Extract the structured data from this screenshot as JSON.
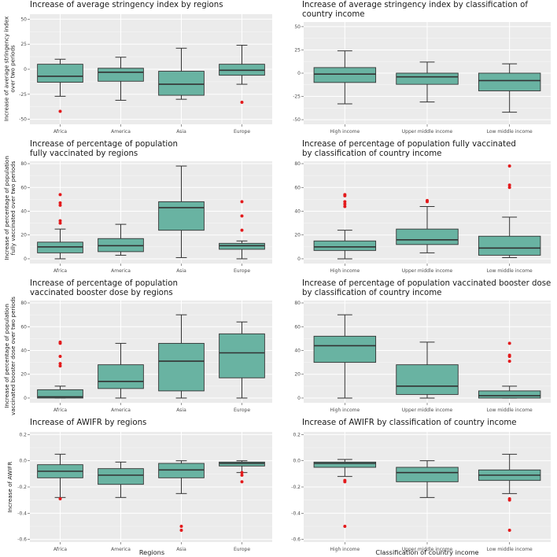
{
  "colors": {
    "panel_bg": "#ebebeb",
    "grid": "#ffffff",
    "box_fill": "#69b3a2",
    "outlier": "#e31a1c",
    "line": "#333333"
  },
  "x_labels": {
    "regions": "Regions",
    "income": "Classification of country income"
  },
  "chart_data": [
    {
      "id": "stringency-regions",
      "type": "boxplot",
      "title": "Increase of average stringency index by regions",
      "ylabel": "Increase of average stringency index\nover two periods",
      "xlabel": "",
      "ylim": [
        -55,
        55
      ],
      "yticks": [
        -50,
        -25,
        0,
        25,
        50
      ],
      "categories": [
        "Africa",
        "America",
        "Asia",
        "Europe"
      ],
      "boxes": [
        {
          "min": -27,
          "q1": -13,
          "median": -7,
          "q3": 5,
          "max": 10,
          "outliers": [
            -42
          ]
        },
        {
          "min": -31,
          "q1": -12,
          "median": -3,
          "q3": 1,
          "max": 12,
          "outliers": []
        },
        {
          "min": -30,
          "q1": -26,
          "median": -15,
          "q3": -2,
          "max": 21,
          "outliers": []
        },
        {
          "min": -15,
          "q1": -6,
          "median": -1,
          "q3": 5,
          "max": 24,
          "outliers": [
            -33
          ]
        }
      ]
    },
    {
      "id": "stringency-income",
      "type": "boxplot",
      "title": "Increase of average stringency index by classification of\ncountry income",
      "ylabel": "",
      "xlabel": "",
      "ylim": [
        -55,
        55
      ],
      "yticks": [
        -50,
        -25,
        0,
        25,
        50
      ],
      "categories": [
        "High income",
        "Upper middle income",
        "Low middle income"
      ],
      "boxes": [
        {
          "min": -33,
          "q1": -10,
          "median": -1,
          "q3": 6,
          "max": 24,
          "outliers": []
        },
        {
          "min": -31,
          "q1": -12,
          "median": -4,
          "q3": 0,
          "max": 12,
          "outliers": []
        },
        {
          "min": -42,
          "q1": -19,
          "median": -8,
          "q3": 0,
          "max": 10,
          "outliers": []
        }
      ]
    },
    {
      "id": "vaccinated-regions",
      "type": "boxplot",
      "title": "Increase of percentage of population\nfully vaccinated by regions",
      "ylabel": "Increase of percentage of population\nfully vaccinated over two periods",
      "xlabel": "",
      "ylim": [
        -4,
        82
      ],
      "yticks": [
        0,
        20,
        40,
        60,
        80
      ],
      "categories": [
        "Africa",
        "America",
        "Asia",
        "Europe"
      ],
      "boxes": [
        {
          "min": 0,
          "q1": 5,
          "median": 10,
          "q3": 14,
          "max": 25,
          "outliers": [
            30,
            32,
            45,
            47,
            54
          ]
        },
        {
          "min": 3,
          "q1": 6,
          "median": 11,
          "q3": 17,
          "max": 29,
          "outliers": []
        },
        {
          "min": 1,
          "q1": 24,
          "median": 43,
          "q3": 48,
          "max": 78,
          "outliers": []
        },
        {
          "min": 0,
          "q1": 8,
          "median": 11,
          "q3": 13,
          "max": 15,
          "outliers": [
            24,
            36,
            48
          ]
        }
      ]
    },
    {
      "id": "vaccinated-income",
      "type": "boxplot",
      "title": "Increase of percentage of population fully vaccinated\nby classification of country income",
      "ylabel": "",
      "xlabel": "",
      "ylim": [
        -4,
        82
      ],
      "yticks": [
        0,
        20,
        40,
        60,
        80
      ],
      "categories": [
        "High income",
        "Upper middle income",
        "Low middle income"
      ],
      "boxes": [
        {
          "min": 0,
          "q1": 7,
          "median": 10,
          "q3": 15,
          "max": 24,
          "outliers": [
            44,
            46,
            48,
            53,
            54
          ]
        },
        {
          "min": 5,
          "q1": 12,
          "median": 16,
          "q3": 25,
          "max": 44,
          "outliers": [
            48,
            49
          ]
        },
        {
          "min": 1,
          "q1": 3,
          "median": 9,
          "q3": 19,
          "max": 35,
          "outliers": [
            60,
            62,
            78
          ]
        }
      ]
    },
    {
      "id": "booster-regions",
      "type": "boxplot",
      "title": "Increase of percentage of population\nvaccinated booster dose by regions",
      "ylabel": "Increase of percentage of population\nvaccinated booster dose over two periods",
      "xlabel": "",
      "ylim": [
        -4,
        82
      ],
      "yticks": [
        0,
        20,
        40,
        60,
        80
      ],
      "categories": [
        "Africa",
        "America",
        "Asia",
        "Europe"
      ],
      "boxes": [
        {
          "min": 0,
          "q1": 0,
          "median": 1,
          "q3": 7,
          "max": 10,
          "outliers": [
            27,
            29,
            35,
            46,
            47
          ]
        },
        {
          "min": 0,
          "q1": 8,
          "median": 14,
          "q3": 28,
          "max": 46,
          "outliers": []
        },
        {
          "min": 0,
          "q1": 6,
          "median": 31,
          "q3": 46,
          "max": 70,
          "outliers": []
        },
        {
          "min": 0,
          "q1": 17,
          "median": 38,
          "q3": 54,
          "max": 64,
          "outliers": []
        }
      ]
    },
    {
      "id": "booster-income",
      "type": "boxplot",
      "title": "Increase of percentage of population vaccinated booster dose\nby classification of country income",
      "ylabel": "",
      "xlabel": "",
      "ylim": [
        -4,
        82
      ],
      "yticks": [
        0,
        20,
        40,
        60,
        80
      ],
      "categories": [
        "High income",
        "Upper middle income",
        "Low middle income"
      ],
      "boxes": [
        {
          "min": 0,
          "q1": 30,
          "median": 44,
          "q3": 52,
          "max": 70,
          "outliers": []
        },
        {
          "min": 0,
          "q1": 3,
          "median": 10,
          "q3": 28,
          "max": 47,
          "outliers": []
        },
        {
          "min": 0,
          "q1": 0,
          "median": 2,
          "q3": 6,
          "max": 10,
          "outliers": [
            31,
            35,
            36,
            46
          ]
        }
      ]
    },
    {
      "id": "awifr-regions",
      "type": "boxplot",
      "title": "Increase of AWIFR by regions",
      "ylabel": "Increase of AWIFR",
      "xlabel": "Regions",
      "ylim": [
        -0.62,
        0.22
      ],
      "yticks": [
        -0.6,
        -0.4,
        -0.2,
        0.0,
        0.2
      ],
      "categories": [
        "Africa",
        "America",
        "Asia",
        "Europe"
      ],
      "boxes": [
        {
          "min": -0.28,
          "q1": -0.13,
          "median": -0.08,
          "q3": -0.03,
          "max": 0.05,
          "outliers": [
            -0.29
          ]
        },
        {
          "min": -0.28,
          "q1": -0.18,
          "median": -0.11,
          "q3": -0.06,
          "max": -0.01,
          "outliers": []
        },
        {
          "min": -0.25,
          "q1": -0.13,
          "median": -0.07,
          "q3": -0.02,
          "max": 0.0,
          "outliers": [
            -0.5,
            -0.53
          ]
        },
        {
          "min": -0.09,
          "q1": -0.04,
          "median": -0.02,
          "q3": -0.01,
          "max": 0.0,
          "outliers": [
            -0.09,
            -0.11,
            -0.16
          ]
        }
      ]
    },
    {
      "id": "awifr-income",
      "type": "boxplot",
      "title": "Increase of AWIFR by classification of country income",
      "ylabel": "",
      "xlabel": "Classification of country income",
      "ylim": [
        -0.62,
        0.22
      ],
      "yticks": [
        -0.6,
        -0.4,
        -0.2,
        0.0,
        0.2
      ],
      "categories": [
        "High income",
        "Upper middle income",
        "Low middle income"
      ],
      "boxes": [
        {
          "min": -0.12,
          "q1": -0.05,
          "median": -0.02,
          "q3": -0.01,
          "max": 0.01,
          "outliers": [
            -0.15,
            -0.16,
            -0.5
          ]
        },
        {
          "min": -0.28,
          "q1": -0.16,
          "median": -0.09,
          "q3": -0.05,
          "max": 0.0,
          "outliers": []
        },
        {
          "min": -0.25,
          "q1": -0.15,
          "median": -0.11,
          "q3": -0.07,
          "max": 0.05,
          "outliers": [
            -0.29,
            -0.3,
            -0.53
          ]
        }
      ]
    }
  ]
}
